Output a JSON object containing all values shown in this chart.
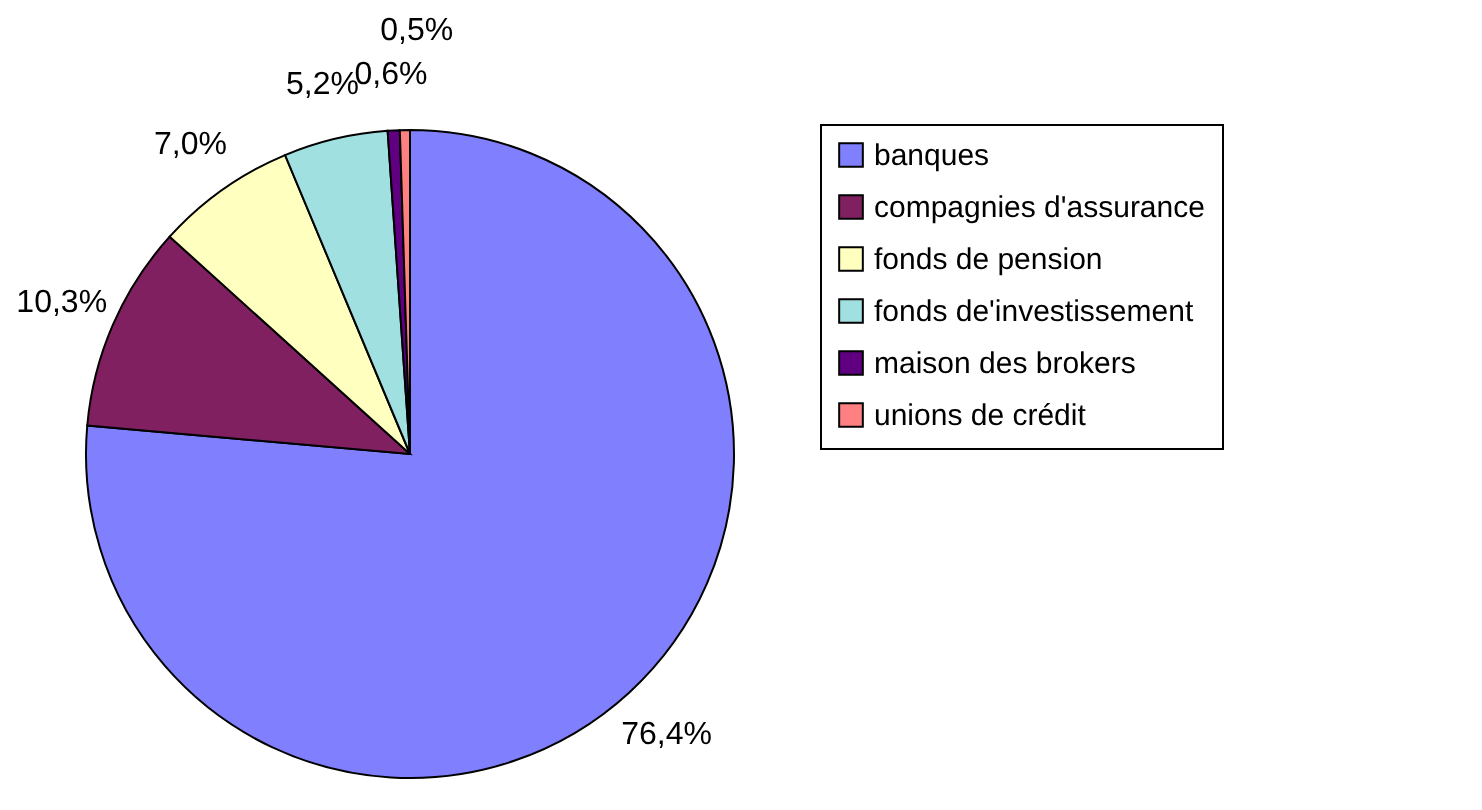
{
  "chart_data": {
    "type": "pie",
    "categories": [
      "banques",
      "compagnies d'assurance",
      "fonds de pension",
      "fonds de'investissement",
      "maison des brokers",
      "unions de crédit"
    ],
    "values": [
      76.4,
      10.3,
      7.0,
      5.2,
      0.6,
      0.5
    ],
    "colors": [
      "#8080ff",
      "#802060",
      "#ffffc0",
      "#a0e0e0",
      "#600080",
      "#ff8080"
    ],
    "value_labels": [
      "76,4%",
      "10,3%",
      "7,0%",
      "5,2%",
      "0,6%",
      "0,5%"
    ],
    "legend": "right"
  }
}
